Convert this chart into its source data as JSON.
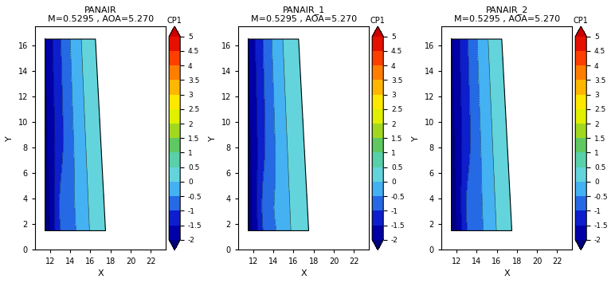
{
  "titles": [
    "PANAIR",
    "PANAIR_1",
    "PANAIR_2"
  ],
  "subtitle": "M=0.5295 , AOA=5.270",
  "xlabel": "X",
  "ylabel": "Y",
  "xlim": [
    10.5,
    23.5
  ],
  "ylim": [
    0,
    17.5
  ],
  "xticks": [
    12,
    14,
    16,
    18,
    20,
    22
  ],
  "yticks": [
    0,
    2,
    4,
    6,
    8,
    10,
    12,
    14,
    16
  ],
  "cp_min": -2.0,
  "cp_max": 5.0,
  "cp_levels": [
    -2.0,
    -1.5,
    -1.0,
    -0.5,
    0.0,
    0.5,
    1.0,
    1.5,
    2.0,
    2.5,
    3.0,
    3.5,
    4.0,
    4.5,
    5.0
  ],
  "colorbar_ticks": [
    5,
    4.5,
    4,
    3.5,
    3,
    2.5,
    2,
    1.5,
    1,
    0.5,
    0,
    -0.5,
    -1,
    -1.5,
    -2
  ],
  "colorbar_label": "CP1",
  "bg_color": "#ffffff",
  "wing_left_x": 11.5,
  "wing_top_right_x": 16.5,
  "wing_top_y": 16.5,
  "wing_bottom_right_x": 17.5,
  "wing_bottom_y": 1.5,
  "colors_list": [
    "#00007f",
    "#0000cd",
    "#1a3fcc",
    "#3399ff",
    "#55c8e8",
    "#70e0d0",
    "#40c080",
    "#80d040",
    "#c0e000",
    "#ffff00",
    "#ffd000",
    "#ffa000",
    "#ff6000",
    "#ff2000",
    "#cc0000"
  ],
  "figsize": [
    7.72,
    3.55
  ],
  "dpi": 100
}
